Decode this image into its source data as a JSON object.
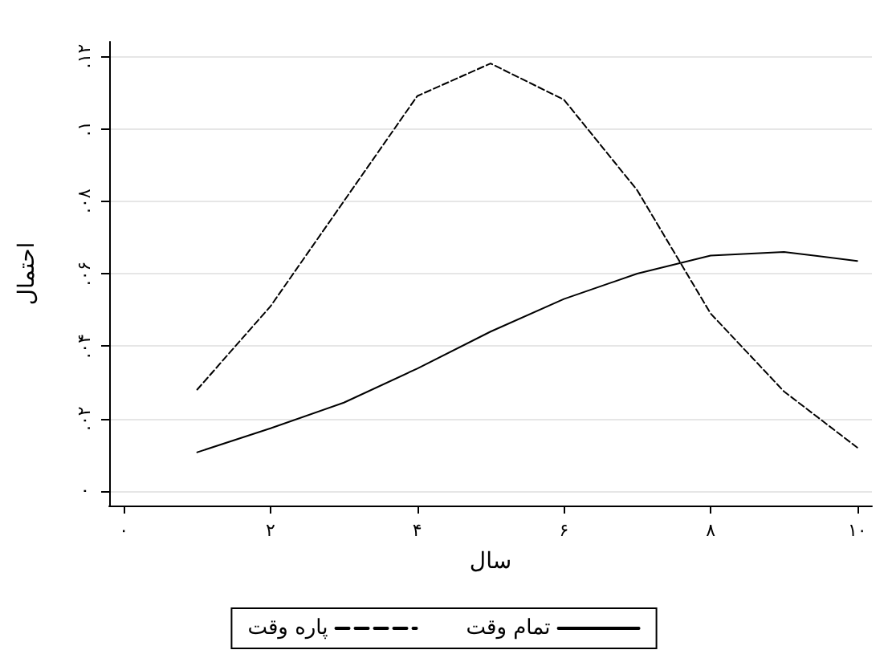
{
  "chart_data": {
    "type": "line",
    "xlabel": "سال",
    "ylabel": "احتمال",
    "x": [
      1,
      2,
      3,
      4,
      5,
      6,
      7,
      8,
      9,
      10
    ],
    "series": [
      {
        "name": "پاره وقت",
        "color": "#000000",
        "line_style": "dashed",
        "values": [
          0.028,
          0.051,
          0.08,
          0.109,
          0.118,
          0.108,
          0.083,
          0.049,
          0.0275,
          0.012
        ]
      },
      {
        "name": "تمام وقت",
        "color": "#000000",
        "line_style": "solid",
        "values": [
          0.0107,
          0.0173,
          0.0244,
          0.0338,
          0.044,
          0.053,
          0.06,
          0.065,
          0.066,
          0.0635
        ]
      }
    ],
    "xlim": [
      -0.2,
      10.2
    ],
    "xticks": [
      {
        "value": 0,
        "label": "۰"
      },
      {
        "value": 2,
        "label": "۲"
      },
      {
        "value": 4,
        "label": "۴"
      },
      {
        "value": 6,
        "label": "۶"
      },
      {
        "value": 8,
        "label": "۸"
      },
      {
        "value": 10,
        "label": "۱۰"
      }
    ],
    "ylim": [
      -0.004,
      0.124
    ],
    "yticks": [
      {
        "value": 0,
        "label": "۰"
      },
      {
        "value": 0.02,
        "label": ".۰۲"
      },
      {
        "value": 0.04,
        "label": ".۰۴"
      },
      {
        "value": 0.06,
        "label": ".۰۶"
      },
      {
        "value": 0.08,
        "label": ".۰۸"
      },
      {
        "value": 0.1,
        "label": ".۱"
      },
      {
        "value": 0.12,
        "label": ".۱۲"
      }
    ],
    "grid": "y",
    "legend": "bottom",
    "marker": "none"
  }
}
